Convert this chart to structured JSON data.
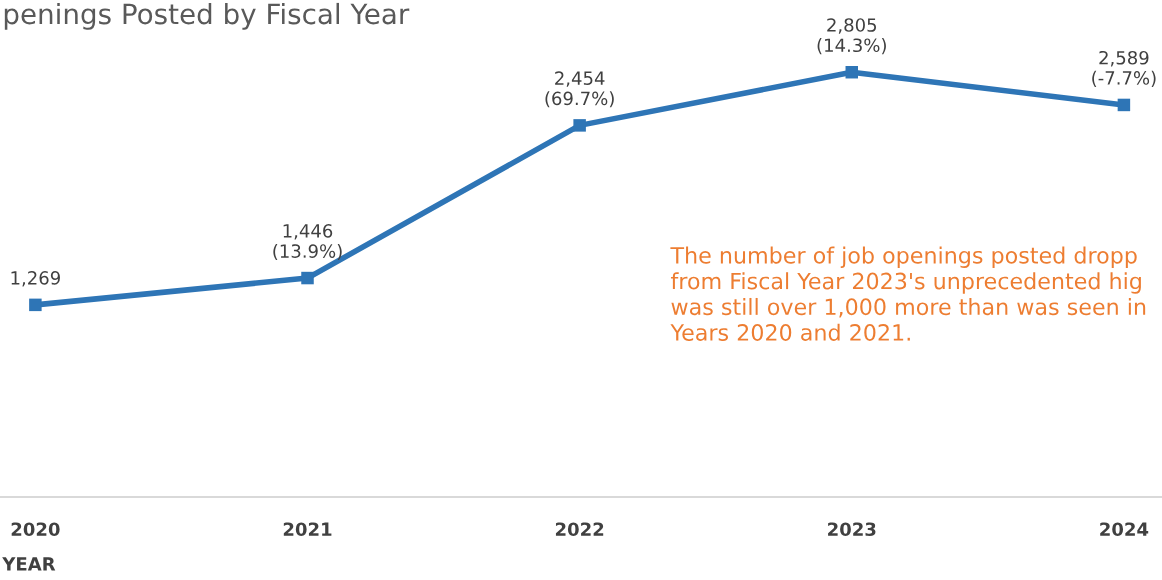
{
  "chart_data": {
    "type": "line",
    "title": "penings Posted by Fiscal Year",
    "xlabel": "YEAR",
    "categories": [
      "2020",
      "2021",
      "2022",
      "2023",
      "2024"
    ],
    "series": [
      {
        "color": "#2e75b6",
        "values": [
          1269,
          1446,
          2454,
          2805,
          2589
        ],
        "value_labels": [
          "1,269",
          "1,446\n(13.9%)",
          "2,454\n(69.7%)",
          "2,805\n(14.3%)",
          "2,589\n(-7.7%)"
        ]
      }
    ],
    "tick_labels": "x",
    "grid": false,
    "legend": false,
    "marker": "square",
    "line_style": "solid",
    "annotations": [
      {
        "text": "The number of job openings posted dropp\nfrom Fiscal Year 2023's unprecedented hig\nwas still over 1,000 more than was seen in\nYears 2020 and 2021."
      }
    ]
  }
}
